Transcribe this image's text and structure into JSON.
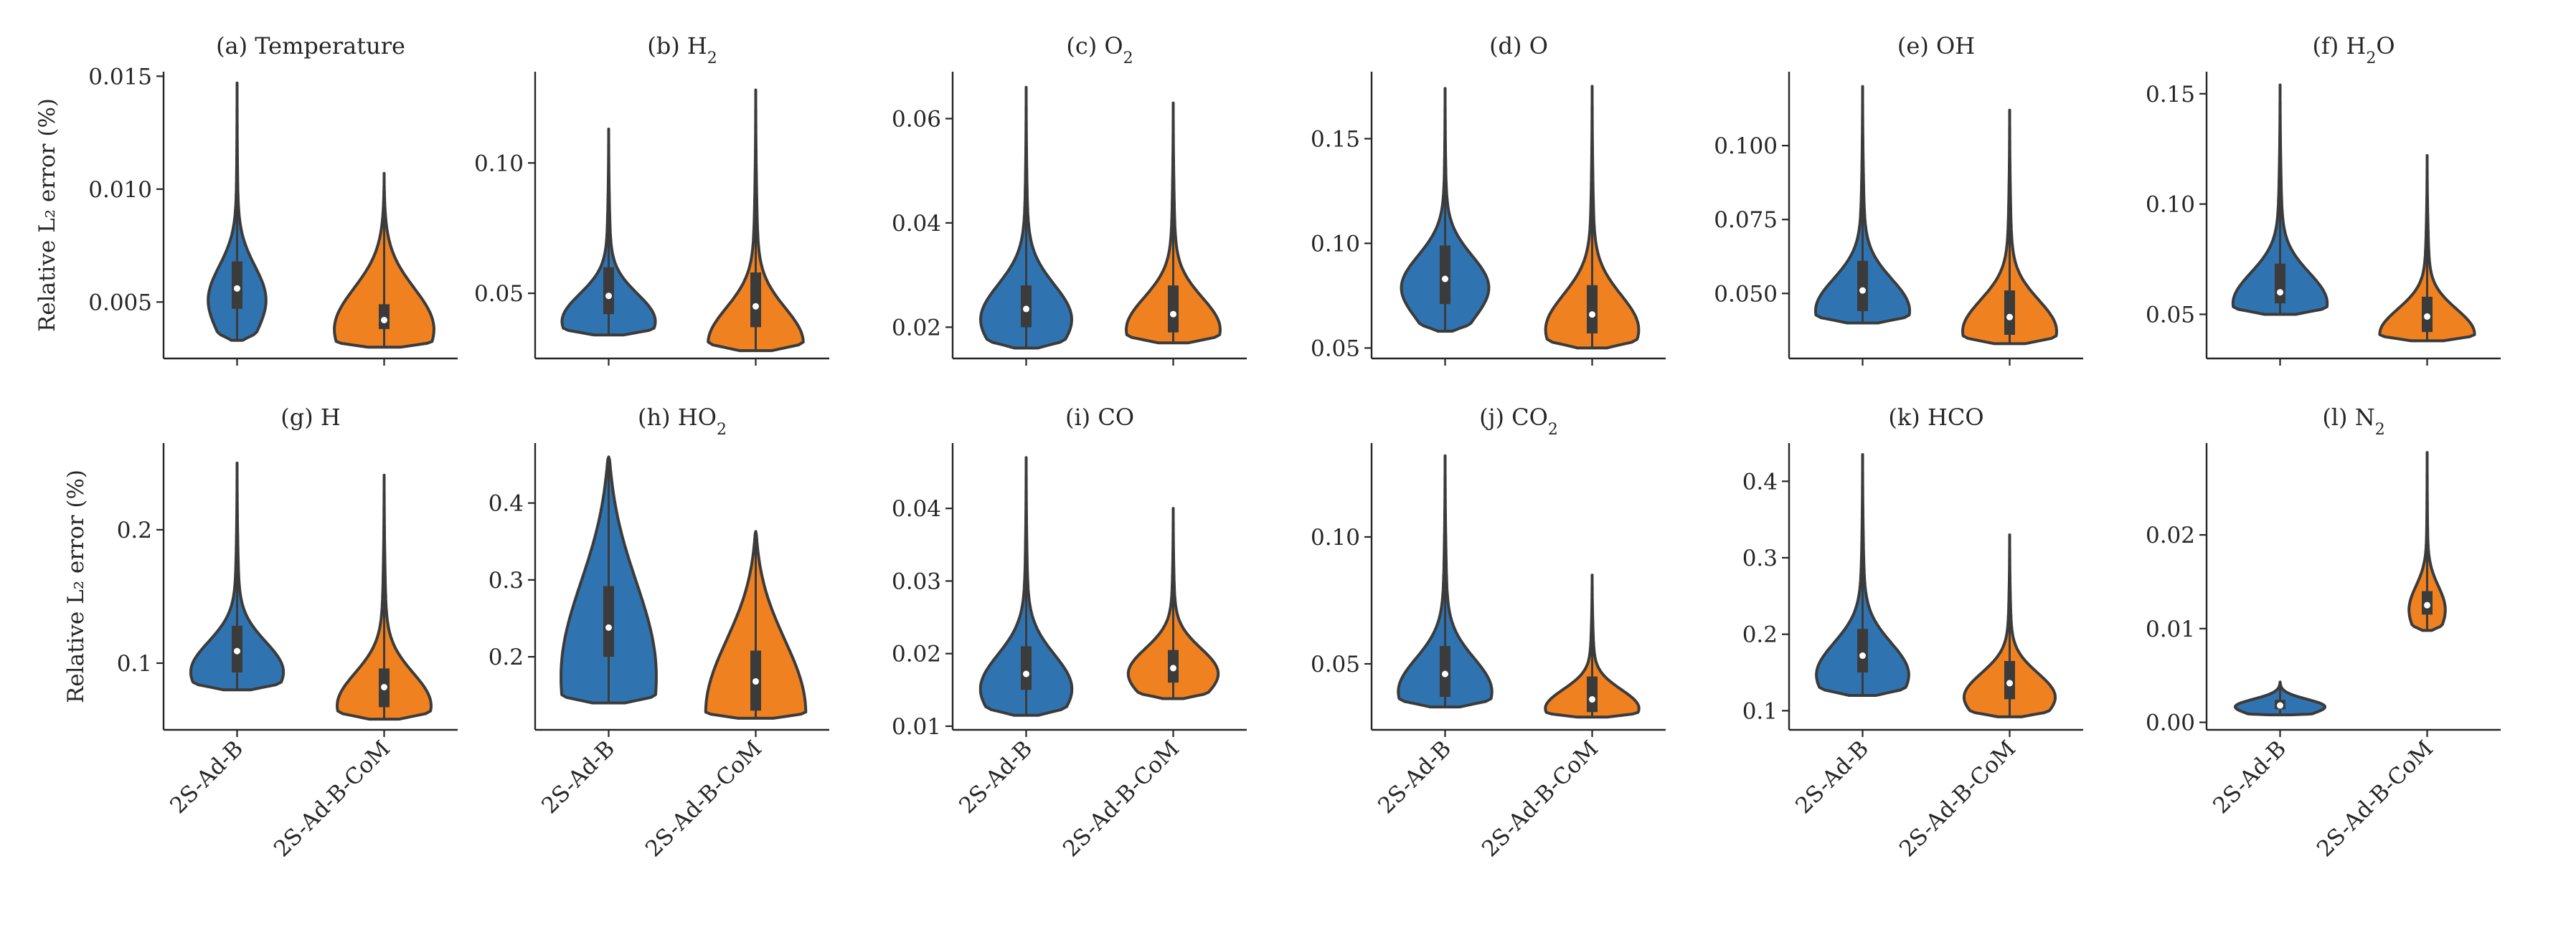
{
  "colors": {
    "series_a": "#2f74b0",
    "series_b": "#ef8120",
    "ink": "#262626",
    "outline": "#3b3b3b"
  },
  "categories": [
    "2S-Ad-B",
    "2S-Ad-B-CoM"
  ],
  "ylabel_rows": [
    "Relative L₂ error (%)",
    "Relative L₂ error (%)"
  ],
  "chart_data": [
    {
      "type": "violin",
      "letter": "(a)",
      "label": "Temperature",
      "sub": "",
      "rest": "",
      "ylim": [
        0.0025,
        0.0152
      ],
      "yticks": [
        0.005,
        0.01,
        0.015
      ],
      "ytick_labels": [
        "0.005",
        "0.010",
        "0.015"
      ],
      "series": [
        {
          "name": "2S-Ad-B",
          "min": 0.0033,
          "q1": 0.0047,
          "median": 0.0056,
          "q3": 0.0068,
          "max": 0.0147,
          "peak": 0.0052,
          "width": 0.62,
          "shape": "long"
        },
        {
          "name": "2S-Ad-B-CoM",
          "min": 0.003,
          "q1": 0.0038,
          "median": 0.0042,
          "q3": 0.0049,
          "max": 0.0107,
          "peak": 0.0041,
          "width": 0.95,
          "shape": "flat"
        }
      ]
    },
    {
      "type": "violin",
      "letter": "(b)",
      "label": "H",
      "sub": "2",
      "rest": "",
      "ylim": [
        0.025,
        0.135
      ],
      "yticks": [
        0.05,
        0.1
      ],
      "ytick_labels": [
        "0.05",
        "0.10"
      ],
      "series": [
        {
          "name": "2S-Ad-B",
          "min": 0.034,
          "q1": 0.042,
          "median": 0.049,
          "q3": 0.06,
          "max": 0.113,
          "peak": 0.04,
          "width": 0.95,
          "shape": "long"
        },
        {
          "name": "2S-Ad-B-CoM",
          "min": 0.028,
          "q1": 0.037,
          "median": 0.045,
          "q3": 0.058,
          "max": 0.128,
          "peak": 0.032,
          "width": 0.95,
          "shape": "long"
        }
      ]
    },
    {
      "type": "violin",
      "letter": "(c)",
      "label": "O",
      "sub": "2",
      "rest": "",
      "ylim": [
        0.014,
        0.069
      ],
      "yticks": [
        0.02,
        0.04,
        0.06
      ],
      "ytick_labels": [
        "0.02",
        "0.04",
        "0.06"
      ],
      "series": [
        {
          "name": "2S-Ad-B",
          "min": 0.016,
          "q1": 0.02,
          "median": 0.0235,
          "q3": 0.028,
          "max": 0.066,
          "peak": 0.022,
          "width": 0.95,
          "shape": "long"
        },
        {
          "name": "2S-Ad-B-CoM",
          "min": 0.017,
          "q1": 0.019,
          "median": 0.0225,
          "q3": 0.028,
          "max": 0.063,
          "peak": 0.02,
          "width": 0.95,
          "shape": "long"
        }
      ]
    },
    {
      "type": "violin",
      "letter": "(d)",
      "label": "O",
      "sub": "",
      "rest": "",
      "ylim": [
        0.045,
        0.182
      ],
      "yticks": [
        0.05,
        0.1,
        0.15
      ],
      "ytick_labels": [
        "0.05",
        "0.10",
        "0.15"
      ],
      "series": [
        {
          "name": "2S-Ad-B",
          "min": 0.058,
          "q1": 0.071,
          "median": 0.083,
          "q3": 0.099,
          "max": 0.174,
          "peak": 0.08,
          "width": 0.95,
          "shape": "long"
        },
        {
          "name": "2S-Ad-B-CoM",
          "min": 0.05,
          "q1": 0.057,
          "median": 0.066,
          "q3": 0.08,
          "max": 0.175,
          "peak": 0.06,
          "width": 0.95,
          "shape": "long"
        }
      ]
    },
    {
      "type": "violin",
      "letter": "(e)",
      "label": "OH",
      "sub": "",
      "rest": "",
      "ylim": [
        0.028,
        0.125
      ],
      "yticks": [
        0.05,
        0.075,
        0.1
      ],
      "ytick_labels": [
        "0.050",
        "0.075",
        "0.100"
      ],
      "series": [
        {
          "name": "2S-Ad-B",
          "min": 0.04,
          "q1": 0.044,
          "median": 0.051,
          "q3": 0.061,
          "max": 0.12,
          "peak": 0.045,
          "width": 0.95,
          "shape": "long"
        },
        {
          "name": "2S-Ad-B-CoM",
          "min": 0.033,
          "q1": 0.036,
          "median": 0.042,
          "q3": 0.051,
          "max": 0.112,
          "peak": 0.038,
          "width": 0.95,
          "shape": "long"
        }
      ]
    },
    {
      "type": "violin",
      "letter": "(f)",
      "label": "H",
      "sub": "2",
      "rest": "O",
      "ylim": [
        0.03,
        0.16
      ],
      "yticks": [
        0.05,
        0.1,
        0.15
      ],
      "ytick_labels": [
        "0.05",
        "0.10",
        "0.15"
      ],
      "series": [
        {
          "name": "2S-Ad-B",
          "min": 0.05,
          "q1": 0.055,
          "median": 0.06,
          "q3": 0.073,
          "max": 0.154,
          "peak": 0.056,
          "width": 0.95,
          "shape": "long"
        },
        {
          "name": "2S-Ad-B-CoM",
          "min": 0.038,
          "q1": 0.042,
          "median": 0.049,
          "q3": 0.058,
          "max": 0.122,
          "peak": 0.042,
          "width": 0.95,
          "shape": "long"
        }
      ]
    },
    {
      "type": "violin",
      "letter": "(g)",
      "label": "H",
      "sub": "",
      "rest": "",
      "ylim": [
        0.05,
        0.265
      ],
      "yticks": [
        0.1,
        0.2
      ],
      "ytick_labels": [
        "0.1",
        "0.2"
      ],
      "series": [
        {
          "name": "2S-Ad-B",
          "min": 0.08,
          "q1": 0.093,
          "median": 0.109,
          "q3": 0.128,
          "max": 0.25,
          "peak": 0.095,
          "width": 0.95,
          "shape": "long"
        },
        {
          "name": "2S-Ad-B-CoM",
          "min": 0.058,
          "q1": 0.067,
          "median": 0.082,
          "q3": 0.096,
          "max": 0.241,
          "peak": 0.07,
          "width": 0.95,
          "shape": "long"
        }
      ]
    },
    {
      "type": "violin",
      "letter": "(h)",
      "label": "HO",
      "sub": "2",
      "rest": "",
      "ylim": [
        0.105,
        0.478
      ],
      "yticks": [
        0.2,
        0.3,
        0.4
      ],
      "ytick_labels": [
        "0.2",
        "0.3",
        "0.4"
      ],
      "series": [
        {
          "name": "2S-Ad-B",
          "min": 0.14,
          "q1": 0.2,
          "median": 0.238,
          "q3": 0.292,
          "max": 0.46,
          "peak": 0.205,
          "width": 0.95,
          "shape": "broad"
        },
        {
          "name": "2S-Ad-B-CoM",
          "min": 0.12,
          "q1": 0.13,
          "median": 0.168,
          "q3": 0.208,
          "max": 0.363,
          "peak": 0.15,
          "width": 0.95,
          "shape": "broad"
        }
      ]
    },
    {
      "type": "violin",
      "letter": "(i)",
      "label": "CO",
      "sub": "",
      "rest": "",
      "ylim": [
        0.0095,
        0.049
      ],
      "yticks": [
        0.01,
        0.02,
        0.03,
        0.04
      ],
      "ytick_labels": [
        "0.01",
        "0.02",
        "0.03",
        "0.04"
      ],
      "series": [
        {
          "name": "2S-Ad-B",
          "min": 0.0115,
          "q1": 0.015,
          "median": 0.0172,
          "q3": 0.021,
          "max": 0.047,
          "peak": 0.0155,
          "width": 0.95,
          "shape": "long"
        },
        {
          "name": "2S-Ad-B-CoM",
          "min": 0.0138,
          "q1": 0.016,
          "median": 0.018,
          "q3": 0.0205,
          "max": 0.04,
          "peak": 0.0175,
          "width": 0.95,
          "shape": "long"
        }
      ]
    },
    {
      "type": "violin",
      "letter": "(j)",
      "label": "CO",
      "sub": "2",
      "rest": "",
      "ylim": [
        0.024,
        0.137
      ],
      "yticks": [
        0.05,
        0.1
      ],
      "ytick_labels": [
        "0.05",
        "0.10"
      ],
      "series": [
        {
          "name": "2S-Ad-B",
          "min": 0.033,
          "q1": 0.037,
          "median": 0.046,
          "q3": 0.057,
          "max": 0.132,
          "peak": 0.04,
          "width": 0.95,
          "shape": "long"
        },
        {
          "name": "2S-Ad-B-CoM",
          "min": 0.029,
          "q1": 0.031,
          "median": 0.036,
          "q3": 0.045,
          "max": 0.085,
          "peak": 0.033,
          "width": 0.95,
          "shape": "long"
        }
      ]
    },
    {
      "type": "violin",
      "letter": "(k)",
      "label": "HCO",
      "sub": "",
      "rest": "",
      "ylim": [
        0.075,
        0.45
      ],
      "yticks": [
        0.1,
        0.2,
        0.3,
        0.4
      ],
      "ytick_labels": [
        "0.1",
        "0.2",
        "0.3",
        "0.4"
      ],
      "series": [
        {
          "name": "2S-Ad-B",
          "min": 0.12,
          "q1": 0.15,
          "median": 0.172,
          "q3": 0.207,
          "max": 0.435,
          "peak": 0.15,
          "width": 0.95,
          "shape": "long"
        },
        {
          "name": "2S-Ad-B-CoM",
          "min": 0.092,
          "q1": 0.115,
          "median": 0.136,
          "q3": 0.165,
          "max": 0.33,
          "peak": 0.12,
          "width": 0.95,
          "shape": "long"
        }
      ]
    },
    {
      "type": "violin",
      "letter": "(l)",
      "label": "N",
      "sub": "2",
      "rest": "",
      "ylim": [
        -0.0008,
        0.0298
      ],
      "yticks": [
        0.0,
        0.01,
        0.02
      ],
      "ytick_labels": [
        "0.00",
        "0.01",
        "0.02"
      ],
      "series": [
        {
          "name": "2S-Ad-B",
          "min": 0.0008,
          "q1": 0.0014,
          "median": 0.0018,
          "q3": 0.0024,
          "max": 0.0043,
          "peak": 0.0018,
          "width": 0.95,
          "shape": "flat"
        },
        {
          "name": "2S-Ad-B-CoM",
          "min": 0.0098,
          "q1": 0.0115,
          "median": 0.0125,
          "q3": 0.014,
          "max": 0.0288,
          "peak": 0.0122,
          "width": 0.38,
          "shape": "long"
        }
      ]
    }
  ]
}
